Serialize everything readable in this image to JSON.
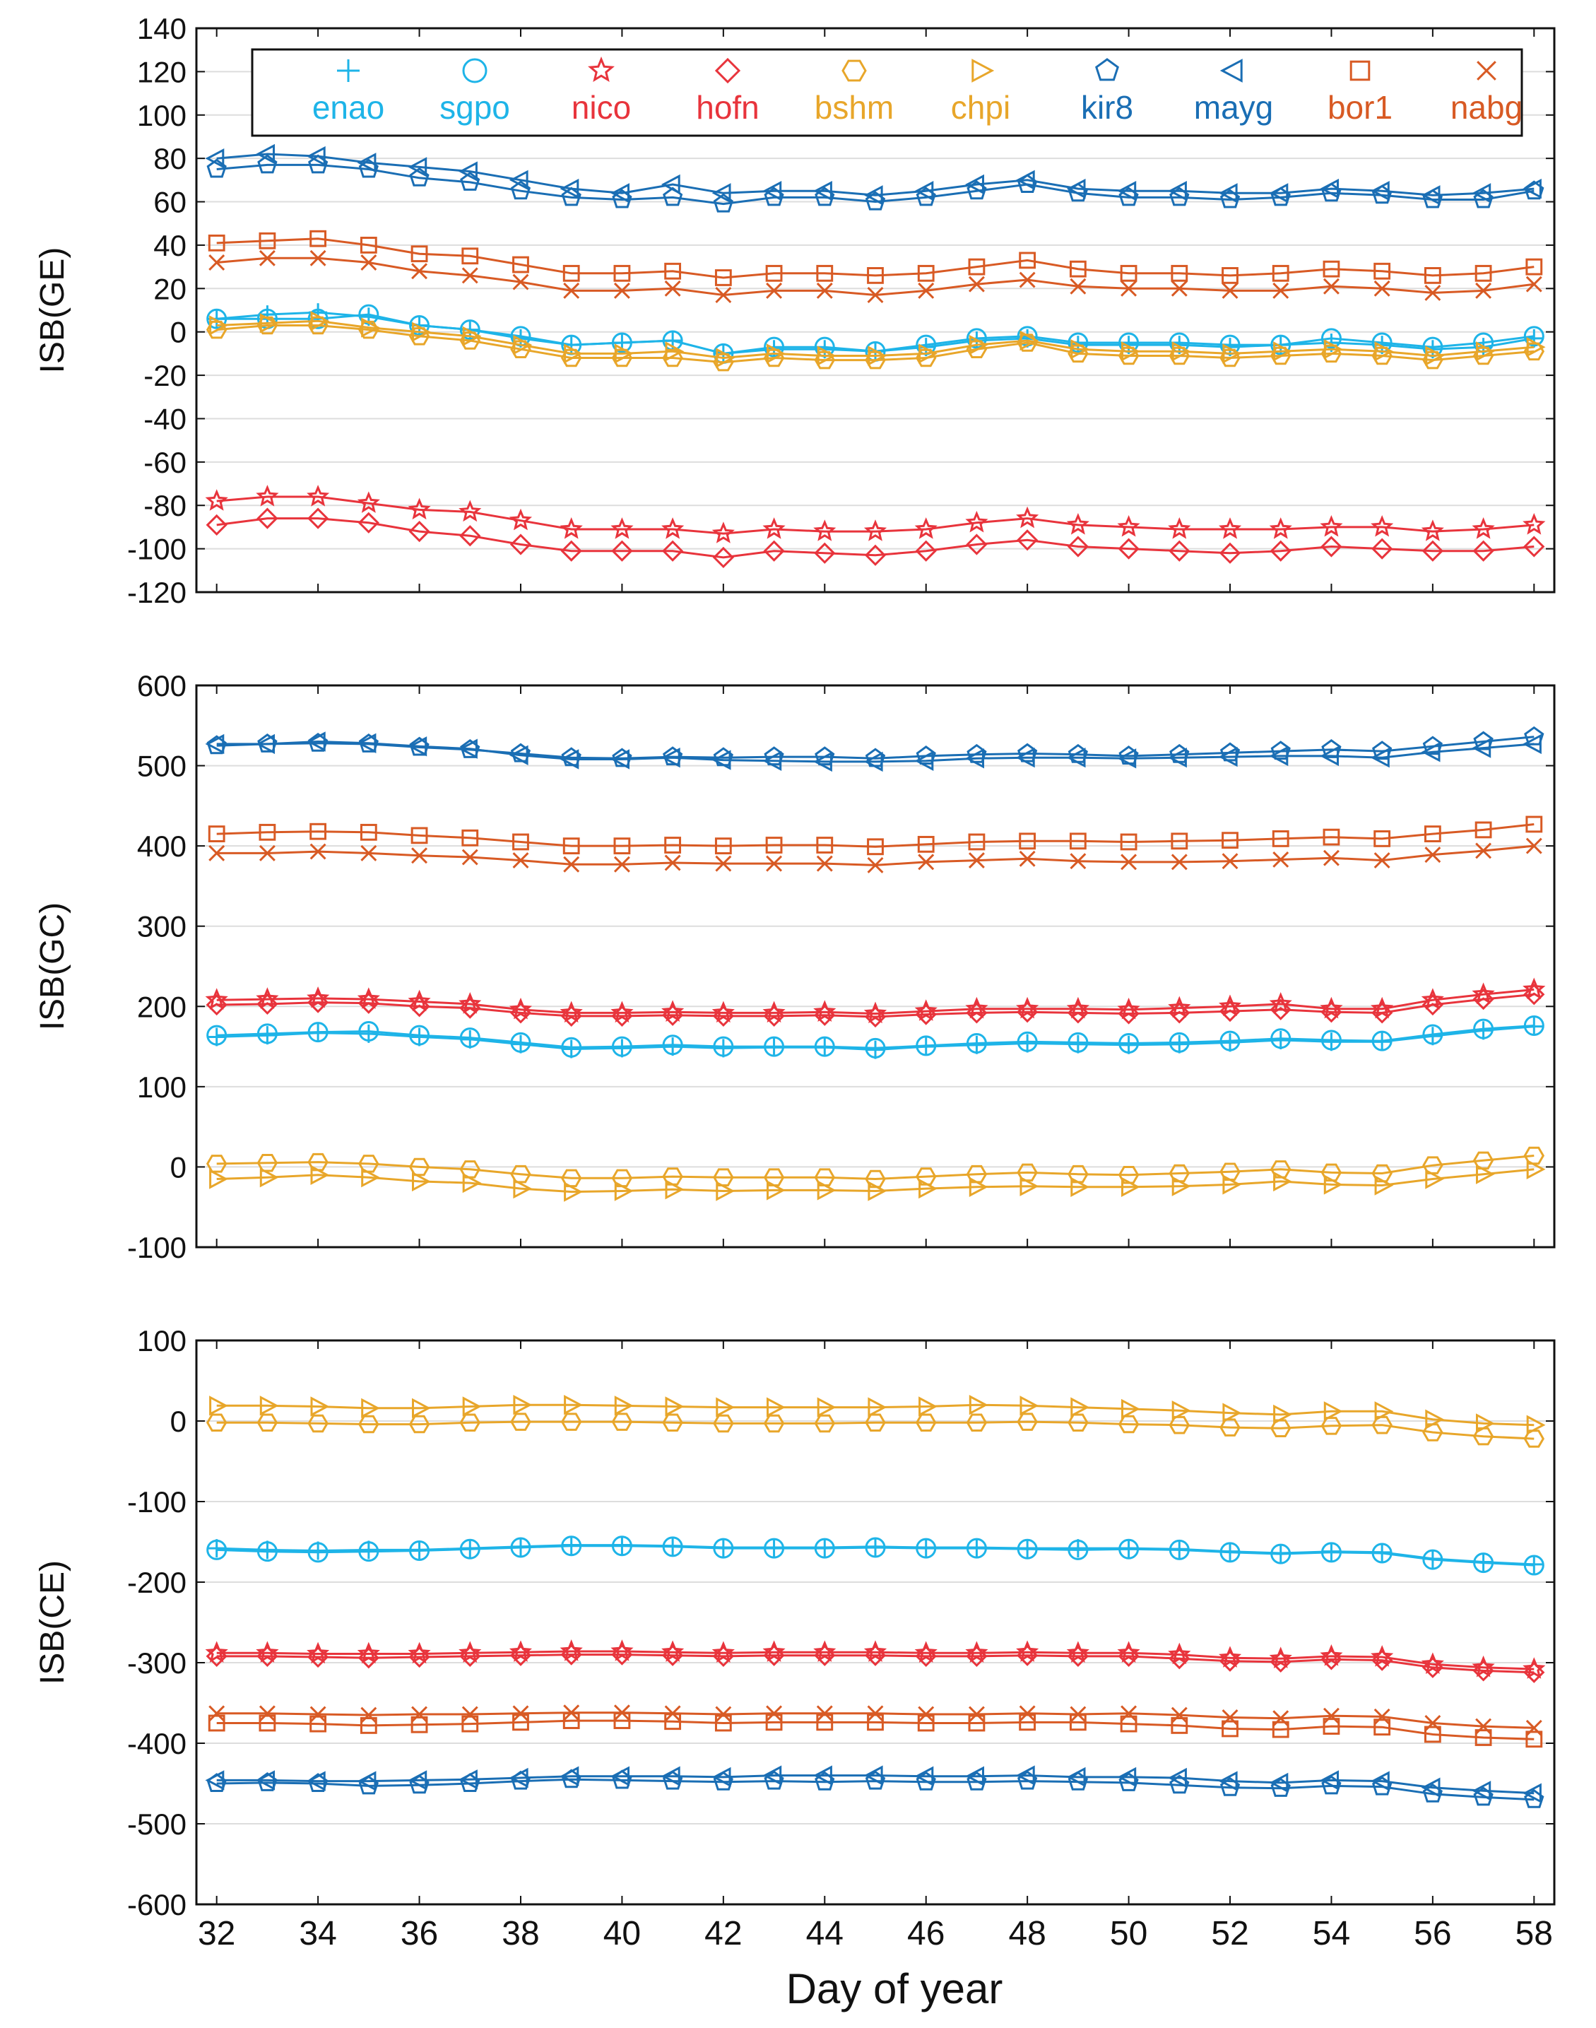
{
  "figure": {
    "xlabel": "Day of year",
    "x_ticks": [
      "32",
      "34",
      "36",
      "38",
      "40",
      "42",
      "44",
      "46",
      "48",
      "50",
      "52",
      "54",
      "56",
      "58"
    ]
  },
  "legend": [
    {
      "name": "enao",
      "color": "#1eb4e8",
      "marker": "plus"
    },
    {
      "name": "sgpo",
      "color": "#1eb4e8",
      "marker": "circle"
    },
    {
      "name": "nico",
      "color": "#e8343c",
      "marker": "star"
    },
    {
      "name": "hofn",
      "color": "#e8343c",
      "marker": "diamond"
    },
    {
      "name": "bshm",
      "color": "#e8a62a",
      "marker": "hexagon"
    },
    {
      "name": "chpi",
      "color": "#e8a62a",
      "marker": "triangle-right"
    },
    {
      "name": "kir8",
      "color": "#1a6eb4",
      "marker": "pentagon"
    },
    {
      "name": "mayg",
      "color": "#1a6eb4",
      "marker": "triangle-left"
    },
    {
      "name": "bor1",
      "color": "#d85a24",
      "marker": "square"
    },
    {
      "name": "nabg",
      "color": "#d85a24",
      "marker": "x"
    }
  ],
  "chart_data": [
    {
      "type": "line",
      "ylabel": "ISB(GE)",
      "ylim": [
        -120,
        140
      ],
      "yticks": [
        "-120",
        "-100",
        "-80",
        "-60",
        "-40",
        "-20",
        "0",
        "20",
        "40",
        "60",
        "80",
        "100",
        "120",
        "140"
      ],
      "x": [
        32,
        33,
        34,
        35,
        36,
        37,
        38,
        39,
        40,
        41,
        42,
        43,
        44,
        45,
        46,
        47,
        48,
        49,
        50,
        51,
        52,
        53,
        54,
        55,
        56,
        57,
        58
      ],
      "series": [
        {
          "name": "kir8",
          "values": [
            75,
            77,
            77,
            75,
            71,
            69,
            65,
            62,
            61,
            62,
            59,
            62,
            62,
            60,
            62,
            65,
            68,
            64,
            62,
            62,
            61,
            62,
            64,
            63,
            61,
            61,
            65
          ]
        },
        {
          "name": "mayg",
          "values": [
            80,
            82,
            81,
            78,
            76,
            74,
            70,
            66,
            64,
            68,
            64,
            65,
            65,
            63,
            65,
            68,
            70,
            66,
            65,
            65,
            64,
            64,
            66,
            65,
            63,
            64,
            66
          ]
        },
        {
          "name": "bor1",
          "values": [
            41,
            42,
            43,
            40,
            36,
            35,
            31,
            27,
            27,
            28,
            25,
            27,
            27,
            26,
            27,
            30,
            33,
            29,
            27,
            27,
            26,
            27,
            29,
            28,
            26,
            27,
            30
          ]
        },
        {
          "name": "nabg",
          "values": [
            32,
            34,
            34,
            32,
            28,
            26,
            23,
            19,
            19,
            20,
            17,
            19,
            19,
            17,
            19,
            22,
            24,
            21,
            20,
            20,
            19,
            19,
            21,
            20,
            18,
            19,
            22
          ]
        },
        {
          "name": "enao",
          "values": [
            6,
            8,
            9,
            7,
            3,
            1,
            -3,
            -6,
            -5,
            -4,
            -10,
            -8,
            -8,
            -9,
            -7,
            -4,
            -3,
            -6,
            -6,
            -6,
            -7,
            -6,
            -5,
            -6,
            -8,
            -7,
            -3
          ]
        },
        {
          "name": "sgpo",
          "values": [
            6,
            6,
            6,
            8,
            3,
            1,
            -2,
            -6,
            -5,
            -4,
            -10,
            -7,
            -7,
            -9,
            -6,
            -3,
            -2,
            -5,
            -5,
            -5,
            -6,
            -6,
            -3,
            -5,
            -7,
            -5,
            -2
          ]
        },
        {
          "name": "bshm",
          "values": [
            1,
            3,
            3,
            1,
            -2,
            -4,
            -8,
            -12,
            -12,
            -12,
            -14,
            -12,
            -13,
            -13,
            -12,
            -8,
            -5,
            -10,
            -11,
            -11,
            -12,
            -11,
            -10,
            -11,
            -13,
            -11,
            -9
          ]
        },
        {
          "name": "chpi",
          "values": [
            3,
            4,
            5,
            2,
            0,
            -2,
            -6,
            -10,
            -10,
            -9,
            -12,
            -10,
            -11,
            -11,
            -10,
            -6,
            -4,
            -8,
            -9,
            -9,
            -10,
            -9,
            -8,
            -9,
            -11,
            -9,
            -7
          ]
        },
        {
          "name": "nico",
          "values": [
            -78,
            -76,
            -76,
            -79,
            -82,
            -83,
            -87,
            -91,
            -91,
            -91,
            -93,
            -91,
            -92,
            -92,
            -91,
            -88,
            -86,
            -89,
            -90,
            -91,
            -91,
            -91,
            -90,
            -90,
            -92,
            -91,
            -89
          ]
        },
        {
          "name": "hofn",
          "values": [
            -89,
            -86,
            -86,
            -88,
            -92,
            -94,
            -98,
            -101,
            -101,
            -101,
            -104,
            -101,
            -102,
            -103,
            -101,
            -98,
            -96,
            -99,
            -100,
            -101,
            -102,
            -101,
            -99,
            -100,
            -101,
            -101,
            -99
          ]
        }
      ]
    },
    {
      "type": "line",
      "ylabel": "ISB(GC)",
      "ylim": [
        -100,
        600
      ],
      "yticks": [
        "-100",
        "0",
        "100",
        "200",
        "300",
        "400",
        "500",
        "600"
      ],
      "x": [
        32,
        33,
        34,
        35,
        36,
        37,
        38,
        39,
        40,
        41,
        42,
        43,
        44,
        45,
        46,
        47,
        48,
        49,
        50,
        51,
        52,
        53,
        54,
        55,
        56,
        57,
        58
      ],
      "series": [
        {
          "name": "kir8",
          "values": [
            525,
            527,
            528,
            527,
            523,
            520,
            515,
            510,
            509,
            511,
            510,
            511,
            511,
            509,
            512,
            514,
            515,
            514,
            512,
            514,
            516,
            518,
            520,
            518,
            524,
            530,
            536
          ]
        },
        {
          "name": "mayg",
          "values": [
            527,
            527,
            530,
            528,
            524,
            521,
            513,
            508,
            508,
            510,
            507,
            506,
            505,
            505,
            506,
            509,
            510,
            510,
            509,
            510,
            511,
            512,
            512,
            510,
            517,
            522,
            527
          ]
        },
        {
          "name": "bor1",
          "values": [
            415,
            417,
            418,
            417,
            413,
            410,
            405,
            400,
            400,
            401,
            400,
            401,
            401,
            399,
            402,
            405,
            406,
            406,
            405,
            406,
            407,
            409,
            411,
            409,
            415,
            420,
            427
          ]
        },
        {
          "name": "nabg",
          "values": [
            391,
            391,
            393,
            391,
            388,
            386,
            382,
            377,
            377,
            379,
            378,
            378,
            378,
            376,
            380,
            382,
            384,
            381,
            380,
            380,
            381,
            383,
            385,
            382,
            389,
            394,
            400
          ]
        },
        {
          "name": "nico",
          "values": [
            208,
            209,
            210,
            209,
            206,
            203,
            196,
            192,
            192,
            193,
            192,
            192,
            193,
            191,
            194,
            197,
            197,
            197,
            196,
            198,
            200,
            203,
            197,
            197,
            208,
            215,
            221
          ]
        },
        {
          "name": "hofn",
          "values": [
            202,
            203,
            205,
            204,
            200,
            198,
            192,
            188,
            188,
            189,
            188,
            188,
            189,
            187,
            190,
            192,
            193,
            192,
            191,
            192,
            194,
            196,
            193,
            192,
            202,
            209,
            215
          ]
        },
        {
          "name": "enao",
          "values": [
            162,
            164,
            167,
            166,
            162,
            159,
            153,
            147,
            148,
            150,
            148,
            149,
            149,
            146,
            150,
            152,
            154,
            153,
            152,
            153,
            155,
            158,
            156,
            156,
            163,
            170,
            175
          ]
        },
        {
          "name": "sgpo",
          "values": [
            164,
            166,
            168,
            169,
            164,
            161,
            155,
            149,
            150,
            152,
            150,
            150,
            150,
            148,
            151,
            154,
            156,
            155,
            154,
            155,
            157,
            160,
            158,
            157,
            165,
            172,
            176
          ]
        },
        {
          "name": "bshm",
          "values": [
            4,
            5,
            6,
            4,
            0,
            -3,
            -9,
            -14,
            -14,
            -12,
            -13,
            -13,
            -13,
            -15,
            -12,
            -9,
            -7,
            -9,
            -10,
            -8,
            -6,
            -3,
            -7,
            -8,
            2,
            8,
            14
          ]
        },
        {
          "name": "chpi",
          "values": [
            -15,
            -13,
            -10,
            -13,
            -18,
            -20,
            -27,
            -31,
            -30,
            -28,
            -30,
            -29,
            -29,
            -30,
            -27,
            -25,
            -24,
            -25,
            -25,
            -24,
            -22,
            -18,
            -22,
            -23,
            -15,
            -9,
            -3
          ]
        }
      ]
    },
    {
      "type": "line",
      "ylabel": "ISB(CE)",
      "ylim": [
        -600,
        100
      ],
      "yticks": [
        "-600",
        "-500",
        "-400",
        "-300",
        "-200",
        "-100",
        "0",
        "100"
      ],
      "x": [
        32,
        33,
        34,
        35,
        36,
        37,
        38,
        39,
        40,
        41,
        42,
        43,
        44,
        45,
        46,
        47,
        48,
        49,
        50,
        51,
        52,
        53,
        54,
        55,
        56,
        57,
        58
      ],
      "series": [
        {
          "name": "chpi",
          "values": [
            19,
            19,
            18,
            16,
            16,
            18,
            20,
            20,
            19,
            18,
            17,
            17,
            17,
            17,
            18,
            20,
            19,
            17,
            15,
            13,
            10,
            8,
            12,
            12,
            2,
            -3,
            -5
          ]
        },
        {
          "name": "bshm",
          "values": [
            -2,
            -2,
            -3,
            -4,
            -4,
            -2,
            -1,
            -1,
            -1,
            -2,
            -3,
            -3,
            -3,
            -2,
            -2,
            -2,
            -1,
            -2,
            -4,
            -5,
            -8,
            -9,
            -6,
            -5,
            -14,
            -19,
            -22
          ]
        },
        {
          "name": "enao",
          "values": [
            -158,
            -160,
            -161,
            -160,
            -160,
            -158,
            -156,
            -154,
            -154,
            -155,
            -157,
            -157,
            -157,
            -156,
            -157,
            -157,
            -158,
            -158,
            -158,
            -159,
            -162,
            -164,
            -162,
            -163,
            -171,
            -175,
            -178
          ]
        },
        {
          "name": "sgpo",
          "values": [
            -160,
            -162,
            -163,
            -162,
            -161,
            -159,
            -157,
            -155,
            -155,
            -156,
            -158,
            -158,
            -158,
            -157,
            -158,
            -158,
            -159,
            -160,
            -159,
            -160,
            -163,
            -165,
            -163,
            -164,
            -172,
            -176,
            -179
          ]
        },
        {
          "name": "nico",
          "values": [
            -288,
            -288,
            -289,
            -289,
            -289,
            -288,
            -287,
            -286,
            -286,
            -287,
            -288,
            -287,
            -287,
            -287,
            -288,
            -288,
            -287,
            -288,
            -288,
            -290,
            -294,
            -295,
            -292,
            -293,
            -302,
            -306,
            -308
          ]
        },
        {
          "name": "hofn",
          "values": [
            -292,
            -292,
            -293,
            -294,
            -293,
            -292,
            -291,
            -290,
            -290,
            -291,
            -292,
            -291,
            -291,
            -291,
            -292,
            -292,
            -291,
            -292,
            -292,
            -295,
            -298,
            -299,
            -296,
            -297,
            -306,
            -310,
            -312
          ]
        },
        {
          "name": "nabg",
          "values": [
            -363,
            -363,
            -364,
            -365,
            -364,
            -364,
            -363,
            -362,
            -362,
            -363,
            -364,
            -363,
            -363,
            -363,
            -364,
            -364,
            -363,
            -364,
            -363,
            -365,
            -368,
            -369,
            -366,
            -367,
            -375,
            -379,
            -381
          ]
        },
        {
          "name": "bor1",
          "values": [
            -375,
            -375,
            -376,
            -378,
            -377,
            -376,
            -374,
            -372,
            -372,
            -373,
            -375,
            -374,
            -374,
            -374,
            -375,
            -375,
            -374,
            -374,
            -376,
            -378,
            -382,
            -383,
            -379,
            -380,
            -389,
            -393,
            -395
          ]
        },
        {
          "name": "mayg",
          "values": [
            -446,
            -446,
            -447,
            -447,
            -446,
            -445,
            -443,
            -441,
            -441,
            -441,
            -442,
            -440,
            -440,
            -440,
            -441,
            -441,
            -440,
            -442,
            -442,
            -443,
            -447,
            -449,
            -446,
            -447,
            -455,
            -459,
            -462
          ]
        },
        {
          "name": "kir8",
          "values": [
            -450,
            -449,
            -450,
            -453,
            -452,
            -450,
            -447,
            -445,
            -446,
            -447,
            -448,
            -447,
            -448,
            -447,
            -448,
            -448,
            -447,
            -448,
            -449,
            -452,
            -455,
            -456,
            -453,
            -454,
            -463,
            -467,
            -470
          ]
        }
      ]
    }
  ]
}
